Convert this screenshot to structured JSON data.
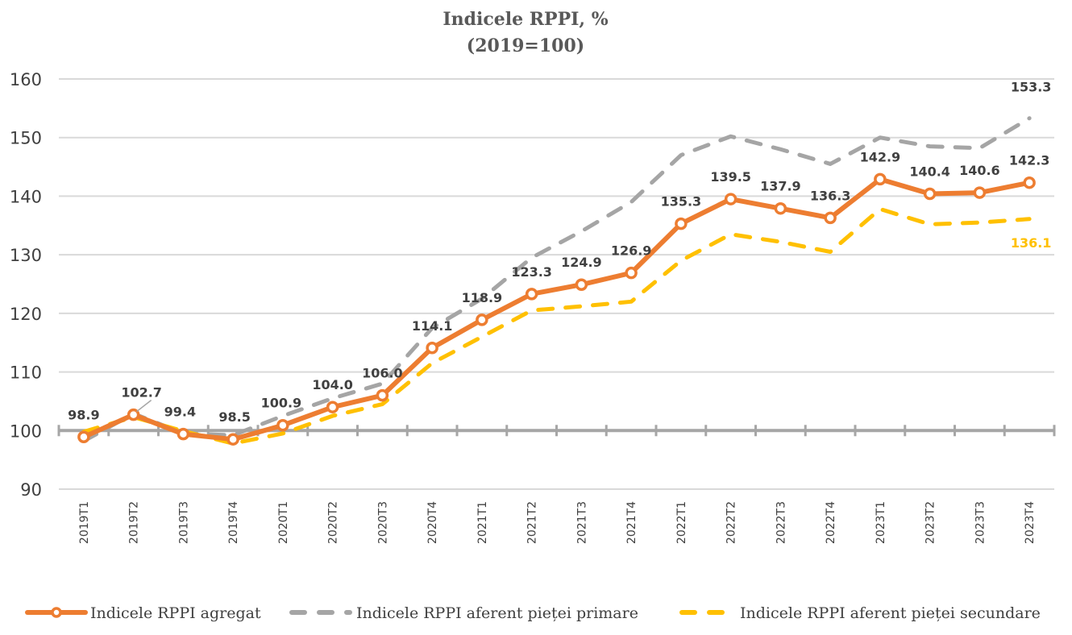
{
  "chart_data": {
    "type": "line",
    "title": "Indicele RPPI, %",
    "subtitle": "(2019=100)",
    "xlabel": "",
    "ylabel": "",
    "ylim": [
      90,
      160
    ],
    "yticks": [
      90,
      100,
      110,
      120,
      130,
      140,
      150,
      160
    ],
    "grid": true,
    "legend_position": "bottom",
    "categories": [
      "2019T1",
      "2019T2",
      "2019T3",
      "2019T4",
      "2020T1",
      "2020T2",
      "2020T3",
      "2020T4",
      "2021T1",
      "2021T2",
      "2021T3",
      "2021T4",
      "2022T1",
      "2022T2",
      "2022T3",
      "2022T4",
      "2023T1",
      "2023T2",
      "2023T3",
      "2023T4"
    ],
    "series": [
      {
        "name": "Indicele RPPI agregat",
        "color": "#ED7D31",
        "style": "solid-markers",
        "values": [
          98.9,
          102.7,
          99.4,
          98.5,
          100.9,
          104.0,
          106.0,
          114.1,
          118.9,
          123.3,
          124.9,
          126.9,
          135.3,
          139.5,
          137.9,
          136.3,
          142.9,
          140.4,
          140.6,
          142.3
        ],
        "labels": [
          "98.9",
          "102.7",
          "99.4",
          "98.5",
          "100.9",
          "104.0",
          "106.0",
          "114.1",
          "118.9",
          "123.3",
          "124.9",
          "126.9",
          "135.3",
          "139.5",
          "137.9",
          "136.3",
          "142.9",
          "140.4",
          "140.6",
          "142.3"
        ]
      },
      {
        "name": "Indicele RPPI aferent pieței primare",
        "color": "#A5A5A5",
        "style": "dashed",
        "values": [
          98.2,
          102.9,
          99.5,
          99.2,
          102.5,
          105.5,
          108.0,
          117.5,
          122.5,
          129.5,
          134.0,
          139.0,
          147.0,
          150.2,
          148.0,
          145.5,
          150.0,
          148.5,
          148.2,
          153.3
        ],
        "end_label": "153.3"
      },
      {
        "name": "Indicele RPPI aferent pieței secundare",
        "color": "#FFC000",
        "style": "dashed",
        "values": [
          99.8,
          102.3,
          99.9,
          97.8,
          99.5,
          102.5,
          104.5,
          111.5,
          116.0,
          120.5,
          121.2,
          122.0,
          129.0,
          133.5,
          132.2,
          130.5,
          137.8,
          135.2,
          135.5,
          136.1
        ],
        "end_label": "136.1"
      }
    ],
    "baseline": 100
  }
}
